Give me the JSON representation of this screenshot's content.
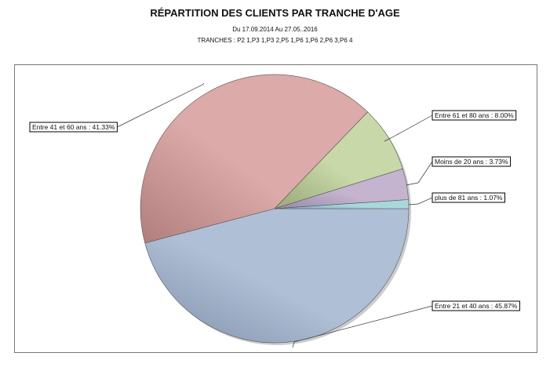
{
  "chart_data": {
    "type": "pie",
    "title": "RÉPARTITION DES CLIENTS PAR TRANCHE D'AGE",
    "subtitle": "Du  17.09.2014  Au  27.05..2016",
    "subtitle2": "TRANCHES :  P2  1,P3  1,P3  2,P5  1,P6  1,P6  2,P6  3,P6  4",
    "start_angle": "3 o'clock, clockwise",
    "slices": [
      {
        "label": "Entre 21 et 40 ans : 45.87%",
        "value": 45.87,
        "color": "#aebfd6",
        "dark": "#7f90a8"
      },
      {
        "label": "Entre 41 et 60 ans : 41.33%",
        "value": 41.33,
        "color": "#dcaaa8",
        "dark": "#b07e7c"
      },
      {
        "label": "Entre 61 et 80 ans : 8.00%",
        "value": 8.0,
        "color": "#c8d8a8",
        "dark": "#98a878"
      },
      {
        "label": "Moins de 20 ans : 3.73%",
        "value": 3.73,
        "color": "#c4b4d0",
        "dark": "#9888a8"
      },
      {
        "label": "plus de 81 ans : 1.07%",
        "value": 1.07,
        "color": "#a8d8dc",
        "dark": "#78a8b0"
      }
    ]
  }
}
